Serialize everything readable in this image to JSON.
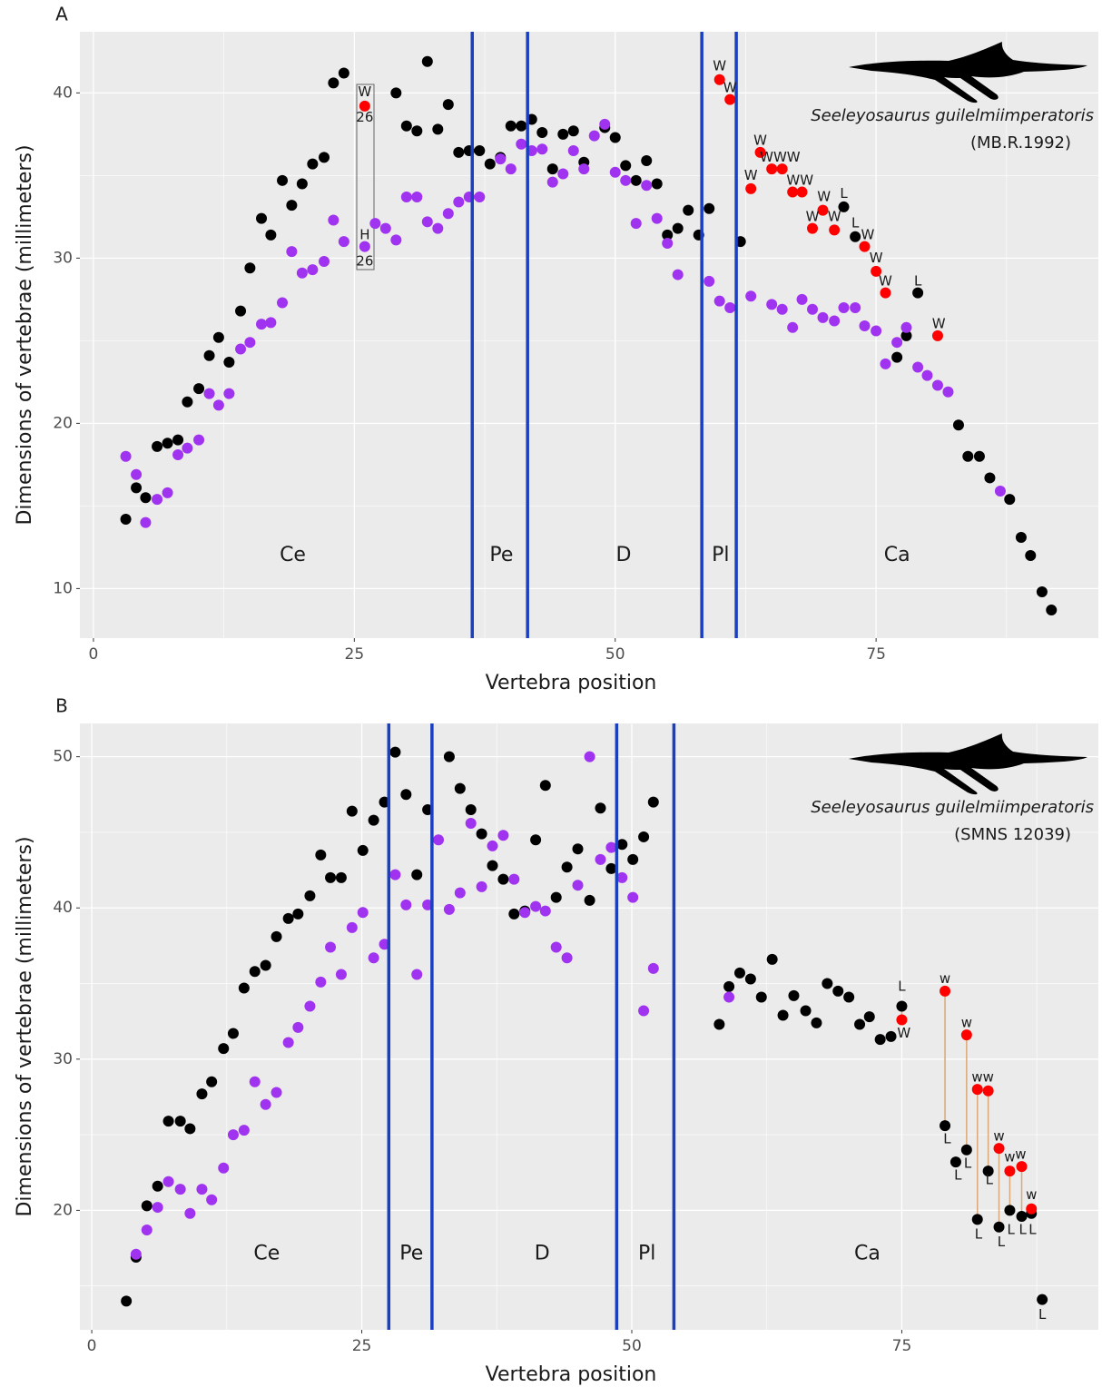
{
  "chart_data": [
    {
      "type": "scatter",
      "panel_label": "A",
      "xlabel": "Vertebra position",
      "ylabel": "Dimensions of vertebrae (millimeters)",
      "specimen": {
        "name": "Seeleyosaurus guilelmiimperatoris",
        "id": "(MB.R.1992)"
      },
      "xlim": [
        -1.3,
        96.3
      ],
      "ylim": [
        7.0,
        43.7
      ],
      "xticks": [
        0,
        25,
        50,
        75
      ],
      "yticks": [
        10,
        20,
        30,
        40
      ],
      "xminor": [
        12.5,
        37.5,
        62.5,
        87.5
      ],
      "yminor": [
        15,
        25,
        35
      ],
      "grid": true,
      "vlines": {
        "color": "#1a3fbf",
        "values": [
          36.3,
          41.6,
          58.3,
          61.6
        ]
      },
      "regions": [
        {
          "label": "Ce",
          "x": 19.1,
          "y": 12.0
        },
        {
          "label": "Pe",
          "x": 39.1,
          "y": 12.0
        },
        {
          "label": "D",
          "x": 50.8,
          "y": 12.0
        },
        {
          "label": "Pl",
          "x": 60.1,
          "y": 12.0
        },
        {
          "label": "Ca",
          "x": 77.0,
          "y": 12.0
        }
      ],
      "series": [
        {
          "color": "#000000",
          "x": [
            3.1,
            4.1,
            5.0,
            6.1,
            7.1,
            8.1,
            9.0,
            10.1,
            11.1,
            12.0,
            13.0,
            14.1,
            15.0,
            16.1,
            17.0,
            18.1,
            19.0,
            20.0,
            21.0,
            22.1,
            23.0,
            24.0,
            29.0,
            30.0,
            31.0,
            32.0,
            33.0,
            34.0,
            35.0,
            36.0,
            37.0,
            38.0,
            39.0,
            40.0,
            41.0,
            42.0,
            43.0,
            44.0,
            45.0,
            46.0,
            47.0,
            49.0,
            50.0,
            51.0,
            52.0,
            53.0,
            54.0,
            55.0,
            56.0,
            57.0,
            58.0,
            59.0,
            62.0,
            71.9,
            73.0,
            77.0,
            77.9,
            79.0,
            82.9,
            83.8,
            84.9,
            85.9,
            87.8,
            88.9,
            89.8,
            90.9,
            91.8
          ],
          "y": [
            14.2,
            16.1,
            15.5,
            18.6,
            18.8,
            19.0,
            21.3,
            22.1,
            24.1,
            25.2,
            23.7,
            26.8,
            29.4,
            32.4,
            31.4,
            34.7,
            33.2,
            34.5,
            35.7,
            36.1,
            40.6,
            41.2,
            40.0,
            38.0,
            37.7,
            41.9,
            37.8,
            39.3,
            36.4,
            36.5,
            36.5,
            35.7,
            36.1,
            38.0,
            38.0,
            38.4,
            37.6,
            35.4,
            37.5,
            37.7,
            35.8,
            37.9,
            37.3,
            35.6,
            34.7,
            35.9,
            34.5,
            31.4,
            31.8,
            32.9,
            31.4,
            33.0,
            31.0,
            33.1,
            31.3,
            24.0,
            25.3,
            27.9,
            19.9,
            18.0,
            18.0,
            16.7,
            15.4,
            13.1,
            12.0,
            9.8,
            8.7
          ]
        },
        {
          "color": "#a033f0",
          "x": [
            3.1,
            4.1,
            5.0,
            6.1,
            7.1,
            8.1,
            9.0,
            10.1,
            11.1,
            12.0,
            13.0,
            14.1,
            15.0,
            16.1,
            17.0,
            18.1,
            19.0,
            20.0,
            21.0,
            22.1,
            23.0,
            24.0,
            26.0,
            27.0,
            28.0,
            29.0,
            30.0,
            31.0,
            32.0,
            33.0,
            34.0,
            35.0,
            36.0,
            37.0,
            39.0,
            40.0,
            41.0,
            42.0,
            43.0,
            44.0,
            45.0,
            46.0,
            47.0,
            48.0,
            49.0,
            50.0,
            51.0,
            52.0,
            53.0,
            54.0,
            55.0,
            56.0,
            59.0,
            60.0,
            61.0,
            63.0,
            65.0,
            66.0,
            67.0,
            67.9,
            68.9,
            69.9,
            71.0,
            71.9,
            73.0,
            73.9,
            75.0,
            75.9,
            77.0,
            77.9,
            79.0,
            79.9,
            80.9,
            81.9,
            86.9
          ],
          "y": [
            18.0,
            16.9,
            14.0,
            15.4,
            15.8,
            18.1,
            18.5,
            19.0,
            21.8,
            21.1,
            21.8,
            24.5,
            24.9,
            26.0,
            26.1,
            27.3,
            30.4,
            29.1,
            29.3,
            29.8,
            32.3,
            31.0,
            30.7,
            32.1,
            31.8,
            31.1,
            33.7,
            33.7,
            32.2,
            31.8,
            32.7,
            33.4,
            33.7,
            33.7,
            36.0,
            35.4,
            36.9,
            36.5,
            36.6,
            34.6,
            35.1,
            36.5,
            35.4,
            37.4,
            38.1,
            35.2,
            34.7,
            32.1,
            34.4,
            32.4,
            30.9,
            29.0,
            28.6,
            27.4,
            27.0,
            27.7,
            27.2,
            26.9,
            25.8,
            27.5,
            26.9,
            26.4,
            26.2,
            27.0,
            27.0,
            25.9,
            25.6,
            23.6,
            24.9,
            25.8,
            23.4,
            22.9,
            22.3,
            21.9,
            15.9
          ]
        },
        {
          "color": "#ff0000",
          "x": [
            26.0,
            60.0,
            61.0,
            63.0,
            63.9,
            65.0,
            66.0,
            67.0,
            67.9,
            68.9,
            69.9,
            71.0,
            73.9,
            75.0,
            75.9,
            80.9
          ],
          "y": [
            39.2,
            40.8,
            39.6,
            34.2,
            36.4,
            35.4,
            35.4,
            34.0,
            34.0,
            31.8,
            32.9,
            31.7,
            30.7,
            29.2,
            27.9,
            25.3
          ]
        }
      ],
      "annotations": [
        {
          "text": "W",
          "x": 26.0,
          "y": 40.05
        },
        {
          "text": "26",
          "x": 26.0,
          "y": 38.5
        },
        {
          "text": "H",
          "x": 26.0,
          "y": 31.4
        },
        {
          "text": "26",
          "x": 26.0,
          "y": 29.8
        },
        {
          "text": "W",
          "x": 60.0,
          "y": 41.6
        },
        {
          "text": "W",
          "x": 61.0,
          "y": 40.3
        },
        {
          "text": "W",
          "x": 63.0,
          "y": 35.0
        },
        {
          "text": "W",
          "x": 63.9,
          "y": 37.1
        },
        {
          "text": "WWW",
          "x": 65.8,
          "y": 36.1
        },
        {
          "text": "WW",
          "x": 67.7,
          "y": 34.7
        },
        {
          "text": "W",
          "x": 68.9,
          "y": 32.5
        },
        {
          "text": "W",
          "x": 70.0,
          "y": 33.7
        },
        {
          "text": "L",
          "x": 71.9,
          "y": 33.9
        },
        {
          "text": "W",
          "x": 71.0,
          "y": 32.5
        },
        {
          "text": "L",
          "x": 73.0,
          "y": 32.1
        },
        {
          "text": "W",
          "x": 74.2,
          "y": 31.4
        },
        {
          "text": "W",
          "x": 75.0,
          "y": 30.0
        },
        {
          "text": "W",
          "x": 75.9,
          "y": 28.6
        },
        {
          "text": "L",
          "x": 79.0,
          "y": 28.6
        },
        {
          "text": "W",
          "x": 81.0,
          "y": 26.0
        }
      ]
    },
    {
      "type": "scatter",
      "panel_label": "B",
      "xlabel": "Vertebra position",
      "ylabel": "Dimensions of vertebrae (millimeters)",
      "specimen": {
        "name": "Seeleyosaurus guilelmiimperatoris",
        "id": "(SMNS 12039)"
      },
      "xlim": [
        -1.1,
        93.2
      ],
      "ylim": [
        12.1,
        52.2
      ],
      "xticks": [
        0,
        25,
        50,
        75
      ],
      "yticks": [
        20,
        30,
        40,
        50
      ],
      "xminor": [
        12.5,
        37.5,
        62.5,
        87.5
      ],
      "yminor": [
        15,
        25,
        35,
        45
      ],
      "grid": true,
      "vlines": {
        "color": "#1a3fbf",
        "values": [
          27.5,
          31.5,
          48.6,
          53.9
        ]
      },
      "regions": [
        {
          "label": "Ce",
          "x": 16.2,
          "y": 17.1
        },
        {
          "label": "Pe",
          "x": 29.6,
          "y": 17.1
        },
        {
          "label": "D",
          "x": 41.7,
          "y": 17.1
        },
        {
          "label": "Pl",
          "x": 51.4,
          "y": 17.1
        },
        {
          "label": "Ca",
          "x": 71.8,
          "y": 17.1
        }
      ],
      "series": [
        {
          "color": "#000000",
          "x": [
            3.2,
            4.1,
            5.1,
            6.1,
            7.1,
            8.2,
            9.1,
            10.2,
            11.1,
            12.2,
            13.1,
            14.1,
            15.1,
            16.1,
            17.1,
            18.2,
            19.1,
            20.2,
            21.2,
            22.1,
            23.1,
            24.1,
            25.1,
            26.1,
            27.1,
            28.1,
            29.1,
            30.1,
            31.1,
            33.1,
            34.1,
            35.1,
            36.1,
            37.1,
            38.1,
            39.1,
            40.1,
            41.1,
            42.0,
            43.0,
            44.0,
            45.0,
            46.1,
            47.1,
            48.1,
            49.1,
            50.1,
            51.1,
            52.0,
            58.1,
            59.0,
            60.0,
            61.0,
            62.0,
            63.0,
            64.0,
            65.0,
            66.1,
            67.1,
            68.1,
            69.1,
            70.1,
            71.1,
            72.0,
            73.0,
            74.0,
            75.0,
            79.0,
            80.0,
            81.0,
            82.0,
            83.0,
            84.0,
            85.0,
            86.1,
            87.0,
            88.0
          ],
          "y": [
            14.0,
            16.9,
            20.3,
            21.6,
            25.9,
            25.9,
            25.4,
            27.7,
            28.5,
            30.7,
            31.7,
            34.7,
            35.8,
            36.2,
            38.1,
            39.3,
            39.6,
            40.8,
            43.5,
            42.0,
            42.0,
            46.4,
            43.8,
            45.8,
            47.0,
            50.3,
            47.5,
            42.2,
            46.5,
            50.0,
            47.9,
            46.5,
            44.9,
            42.8,
            41.9,
            39.6,
            39.8,
            44.5,
            48.1,
            40.7,
            42.7,
            43.9,
            40.5,
            46.6,
            42.6,
            44.2,
            43.2,
            44.7,
            47.0,
            32.3,
            34.8,
            35.7,
            35.3,
            34.1,
            36.6,
            32.9,
            34.2,
            33.2,
            32.4,
            35.0,
            34.5,
            34.1,
            32.3,
            32.8,
            31.3,
            31.5,
            33.5,
            25.6,
            23.2,
            24.0,
            19.4,
            22.6,
            18.9,
            20.0,
            19.6,
            19.8,
            14.1
          ]
        },
        {
          "color": "#a033f0",
          "x": [
            4.1,
            5.1,
            6.1,
            7.1,
            8.2,
            9.1,
            10.2,
            11.1,
            12.2,
            13.1,
            14.1,
            15.1,
            16.1,
            17.1,
            18.2,
            19.1,
            20.2,
            21.2,
            22.1,
            23.1,
            24.1,
            25.1,
            26.1,
            27.1,
            28.1,
            29.1,
            30.1,
            31.1,
            32.1,
            33.1,
            34.1,
            35.1,
            36.1,
            37.1,
            38.1,
            39.1,
            40.1,
            41.1,
            42.0,
            43.0,
            44.0,
            45.0,
            46.1,
            47.1,
            48.1,
            49.1,
            50.1,
            51.1,
            52.0,
            59.0
          ],
          "y": [
            17.1,
            18.7,
            20.2,
            21.9,
            21.4,
            19.8,
            21.4,
            20.7,
            22.8,
            25.0,
            25.3,
            28.5,
            27.0,
            27.8,
            31.1,
            32.1,
            33.5,
            35.1,
            37.4,
            35.6,
            38.7,
            39.7,
            36.7,
            37.6,
            42.2,
            40.2,
            35.6,
            40.2,
            44.5,
            39.9,
            41.0,
            45.6,
            41.4,
            44.1,
            44.8,
            41.9,
            39.7,
            40.1,
            39.8,
            37.4,
            36.7,
            41.5,
            50.0,
            43.2,
            44.0,
            42.0,
            40.7,
            33.2,
            36.0,
            34.1
          ]
        },
        {
          "color": "#ff0000",
          "connect_color": "#d9a97a",
          "x": [
            75.0,
            79.0,
            81.0,
            82.0,
            83.0,
            84.0,
            85.0,
            86.1,
            87.0
          ],
          "y": [
            32.6,
            34.5,
            31.6,
            28.0,
            27.9,
            24.1,
            22.6,
            22.9,
            20.1
          ]
        }
      ],
      "annotations": [
        {
          "text": "L",
          "x": 75.0,
          "y": 34.8
        },
        {
          "text": "W",
          "x": 75.2,
          "y": 31.7
        },
        {
          "text": "w",
          "x": 79.0,
          "y": 35.3
        },
        {
          "text": "L",
          "x": 79.2,
          "y": 24.7
        },
        {
          "text": "w",
          "x": 81.0,
          "y": 32.4
        },
        {
          "text": "L",
          "x": 80.2,
          "y": 22.3
        },
        {
          "text": "L",
          "x": 81.1,
          "y": 23.1
        },
        {
          "text": "ww",
          "x": 82.5,
          "y": 28.8
        },
        {
          "text": "L",
          "x": 83.1,
          "y": 22.0
        },
        {
          "text": "L",
          "x": 82.1,
          "y": 18.4
        },
        {
          "text": "w",
          "x": 84.0,
          "y": 24.9
        },
        {
          "text": "L",
          "x": 84.2,
          "y": 17.9
        },
        {
          "text": "w",
          "x": 85.0,
          "y": 23.5
        },
        {
          "text": "w",
          "x": 86.0,
          "y": 23.7
        },
        {
          "text": "L",
          "x": 85.1,
          "y": 18.7
        },
        {
          "text": "L",
          "x": 86.2,
          "y": 18.7
        },
        {
          "text": "L",
          "x": 87.1,
          "y": 18.7
        },
        {
          "text": "w",
          "x": 87.0,
          "y": 21.0
        },
        {
          "text": "L",
          "x": 88.0,
          "y": 13.1
        }
      ]
    }
  ]
}
